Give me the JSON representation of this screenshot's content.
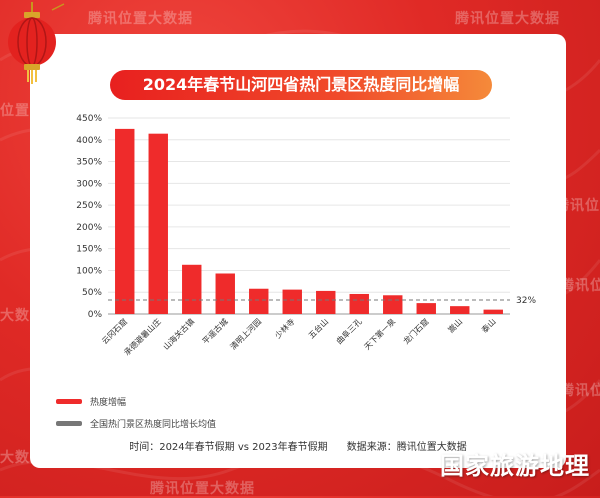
{
  "header": {
    "watermark_text": "腾讯位置大数据"
  },
  "chart_data": {
    "type": "bar",
    "title": "2024年春节山河四省热门景区热度同比增幅",
    "categories": [
      "云冈石窟",
      "承德避暑山庄",
      "山海关古镇",
      "平遥古城",
      "清明上河园",
      "少林寺",
      "五台山",
      "曲阜三孔",
      "天下第一泉",
      "龙门石窟",
      "嵩山",
      "泰山"
    ],
    "series": [
      {
        "name": "热度增幅",
        "values": [
          425,
          414,
          113,
          93,
          58,
          56,
          53,
          46,
          43,
          25,
          18,
          10
        ]
      }
    ],
    "average_line": {
      "name": "全国热门景区热度同比增长均值",
      "value": 32,
      "label": "32%"
    },
    "ylim": [
      0,
      450
    ],
    "yticks": [
      "0%",
      "50%",
      "100%",
      "150%",
      "200%",
      "250%",
      "300%",
      "350%",
      "400%",
      "450%"
    ],
    "ytick_values": [
      0,
      50,
      100,
      150,
      200,
      250,
      300,
      350,
      400,
      450
    ],
    "grid": true,
    "colors": {
      "bar": "#ef2b2b",
      "average": "#777777"
    }
  },
  "footer": {
    "time": "时间：2024年春节假期 vs 2023年春节假期",
    "source": "数据来源：腾讯位置大数据"
  },
  "brand": {
    "logo_text": "国家旅游地理"
  }
}
